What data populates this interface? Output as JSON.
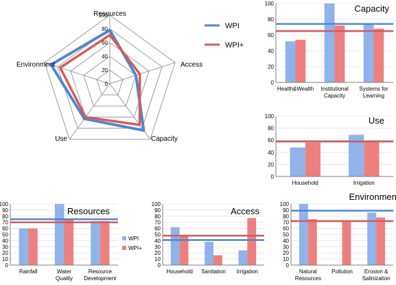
{
  "colors": {
    "wpi": "#4f86d0",
    "wpi_plus": "#d85a5a",
    "wpi_bar": "#8fb3ea",
    "wpi_plus_bar": "#ee7f7f",
    "grid": "#9a9a9a",
    "axis": "#7f7f7f"
  },
  "legend": {
    "radar": [
      "WPI",
      "WPI+"
    ],
    "bars": [
      "WPI",
      "WPI+"
    ]
  },
  "chart_data": [
    {
      "id": "radar",
      "type": "radar",
      "axes": [
        "Resources",
        "Access",
        "Capacity",
        "Use",
        "Environment"
      ],
      "rticks": [
        "0",
        "20",
        "40",
        "60",
        "80",
        "100"
      ],
      "ylim": [
        0,
        100
      ],
      "series": [
        {
          "name": "WPI",
          "values": [
            78,
            40,
            84,
            63,
            90
          ]
        },
        {
          "name": "WPI+",
          "values": [
            71,
            46,
            74,
            60,
            76
          ]
        }
      ]
    },
    {
      "id": "capacity",
      "type": "bar",
      "title": "Capacity",
      "categories": [
        "Health&Wealth",
        "Institutional Capacity",
        "Systems for Learning"
      ],
      "ylim": [
        0,
        100
      ],
      "yticks": [
        "0",
        "20",
        "40",
        "60",
        "80",
        "100"
      ],
      "series": [
        {
          "name": "WPI",
          "values": [
            52,
            100,
            74
          ]
        },
        {
          "name": "WPI+",
          "values": [
            54,
            72,
            68
          ]
        }
      ],
      "reference_lines": {
        "WPI": 74,
        "WPI+": 65
      }
    },
    {
      "id": "use",
      "type": "bar",
      "title": "Use",
      "categories": [
        "Household",
        "Irrigation"
      ],
      "ylim": [
        0,
        100
      ],
      "yticks": [
        "0",
        "20",
        "40",
        "60",
        "80",
        "100"
      ],
      "series": [
        {
          "name": "WPI",
          "values": [
            48,
            69
          ]
        },
        {
          "name": "WPI+",
          "values": [
            56,
            58
          ]
        }
      ],
      "reference_lines": {
        "WPI": 58,
        "WPI+": 58
      }
    },
    {
      "id": "resources",
      "type": "bar",
      "title": "Resources",
      "categories": [
        "Rainfall",
        "Water Quality",
        "Resource Development"
      ],
      "ylim": [
        0,
        100
      ],
      "yticks": [
        "0",
        "10",
        "20",
        "30",
        "40",
        "50",
        "60",
        "70",
        "80",
        "90",
        "100"
      ],
      "series": [
        {
          "name": "WPI",
          "values": [
            60,
            100,
            72
          ]
        },
        {
          "name": "WPI+",
          "values": [
            60,
            76,
            72
          ]
        }
      ],
      "reference_lines": {
        "WPI": 75,
        "WPI+": 70
      }
    },
    {
      "id": "access",
      "type": "bar",
      "title": "Access",
      "categories": [
        "Household",
        "Sanitation",
        "Irrigation"
      ],
      "ylim": [
        0,
        100
      ],
      "yticks": [
        "0",
        "10",
        "20",
        "30",
        "40",
        "50",
        "60",
        "70",
        "80",
        "90",
        "100"
      ],
      "series": [
        {
          "name": "WPI",
          "values": [
            62,
            38,
            24
          ]
        },
        {
          "name": "WPI+",
          "values": [
            49,
            16,
            77
          ]
        }
      ],
      "reference_lines": {
        "WPI": 41,
        "WPI+": 48
      }
    },
    {
      "id": "environment",
      "type": "bar",
      "title": "Environment",
      "categories": [
        "Natural Resources",
        "Pollution",
        "Erosion & Salinization"
      ],
      "ylim": [
        0,
        100
      ],
      "yticks": [
        "0",
        "10",
        "20",
        "30",
        "40",
        "50",
        "60",
        "70",
        "80",
        "90",
        "100"
      ],
      "series": [
        {
          "name": "WPI",
          "values": [
            100,
            0,
            86
          ]
        },
        {
          "name": "WPI+",
          "values": [
            75,
            72,
            78
          ]
        }
      ],
      "reference_lines": {
        "WPI": 89,
        "WPI+": 72
      }
    }
  ]
}
